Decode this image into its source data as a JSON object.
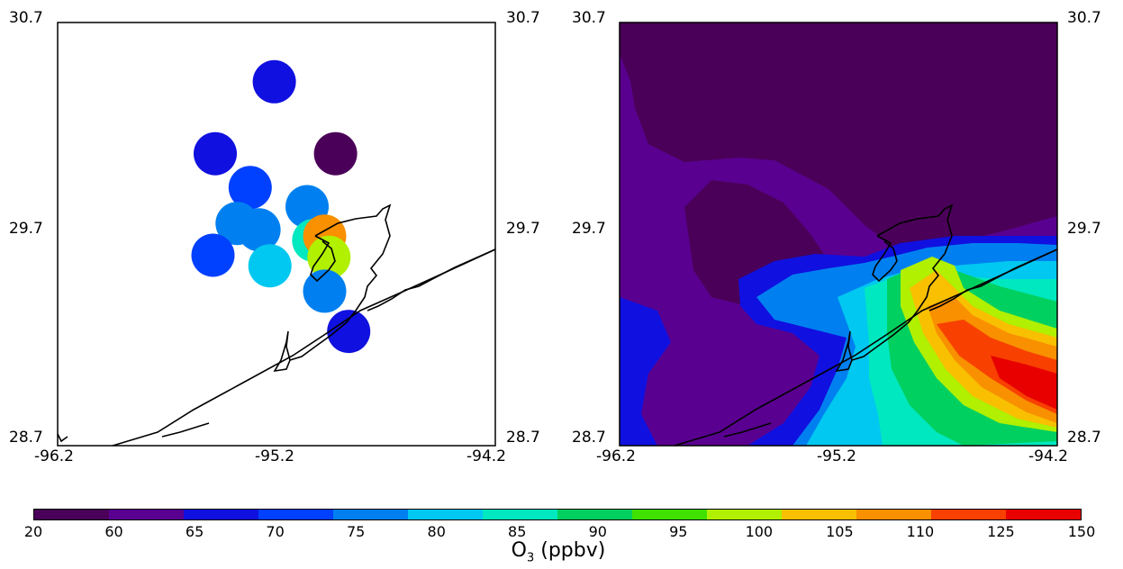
{
  "left_panel": {
    "lat_labels": [
      "30.7",
      "29.7",
      "28.7"
    ],
    "lon_labels": [
      "-96.2",
      "-95.2",
      "-94.2"
    ],
    "stations": [
      {
        "lon": -95.21,
        "lat": 30.42,
        "o3": 67
      },
      {
        "lon": -95.48,
        "lat": 30.08,
        "o3": 68
      },
      {
        "lon": -95.32,
        "lat": 29.92,
        "o3": 73
      },
      {
        "lon": -94.93,
        "lat": 30.08,
        "o3": 40
      },
      {
        "lon": -95.06,
        "lat": 29.83,
        "o3": 78
      },
      {
        "lon": -95.28,
        "lat": 29.72,
        "o3": 78
      },
      {
        "lon": -95.38,
        "lat": 29.75,
        "o3": 78
      },
      {
        "lon": -95.49,
        "lat": 29.6,
        "o3": 72
      },
      {
        "lon": -95.23,
        "lat": 29.55,
        "o3": 83
      },
      {
        "lon": -95.03,
        "lat": 29.67,
        "o3": 88
      },
      {
        "lon": -94.98,
        "lat": 29.69,
        "o3": 118
      },
      {
        "lon": -94.96,
        "lat": 29.59,
        "o3": 103
      },
      {
        "lon": -94.98,
        "lat": 29.43,
        "o3": 77
      },
      {
        "lon": -94.87,
        "lat": 29.24,
        "o3": 68
      }
    ]
  },
  "right_panel": {
    "lat_labels": [
      "30.7",
      "29.7",
      "28.7"
    ],
    "lon_labels": [
      "-96.2",
      "-95.2",
      "-94.2"
    ]
  },
  "colorbar": {
    "labels": [
      "20",
      "60",
      "65",
      "70",
      "75",
      "80",
      "85",
      "90",
      "95",
      "100",
      "105",
      "110",
      "125",
      "150"
    ],
    "colors": [
      "#4a0058",
      "#5a0090",
      "#1010e0",
      "#0040ff",
      "#0080f0",
      "#00c8f0",
      "#00e8c0",
      "#00d060",
      "#40e000",
      "#b0f000",
      "#f8c000",
      "#f89000",
      "#f84000",
      "#e80000"
    ],
    "title_main": "O",
    "title_sub": "3",
    "title_unit": " (ppbv)"
  }
}
